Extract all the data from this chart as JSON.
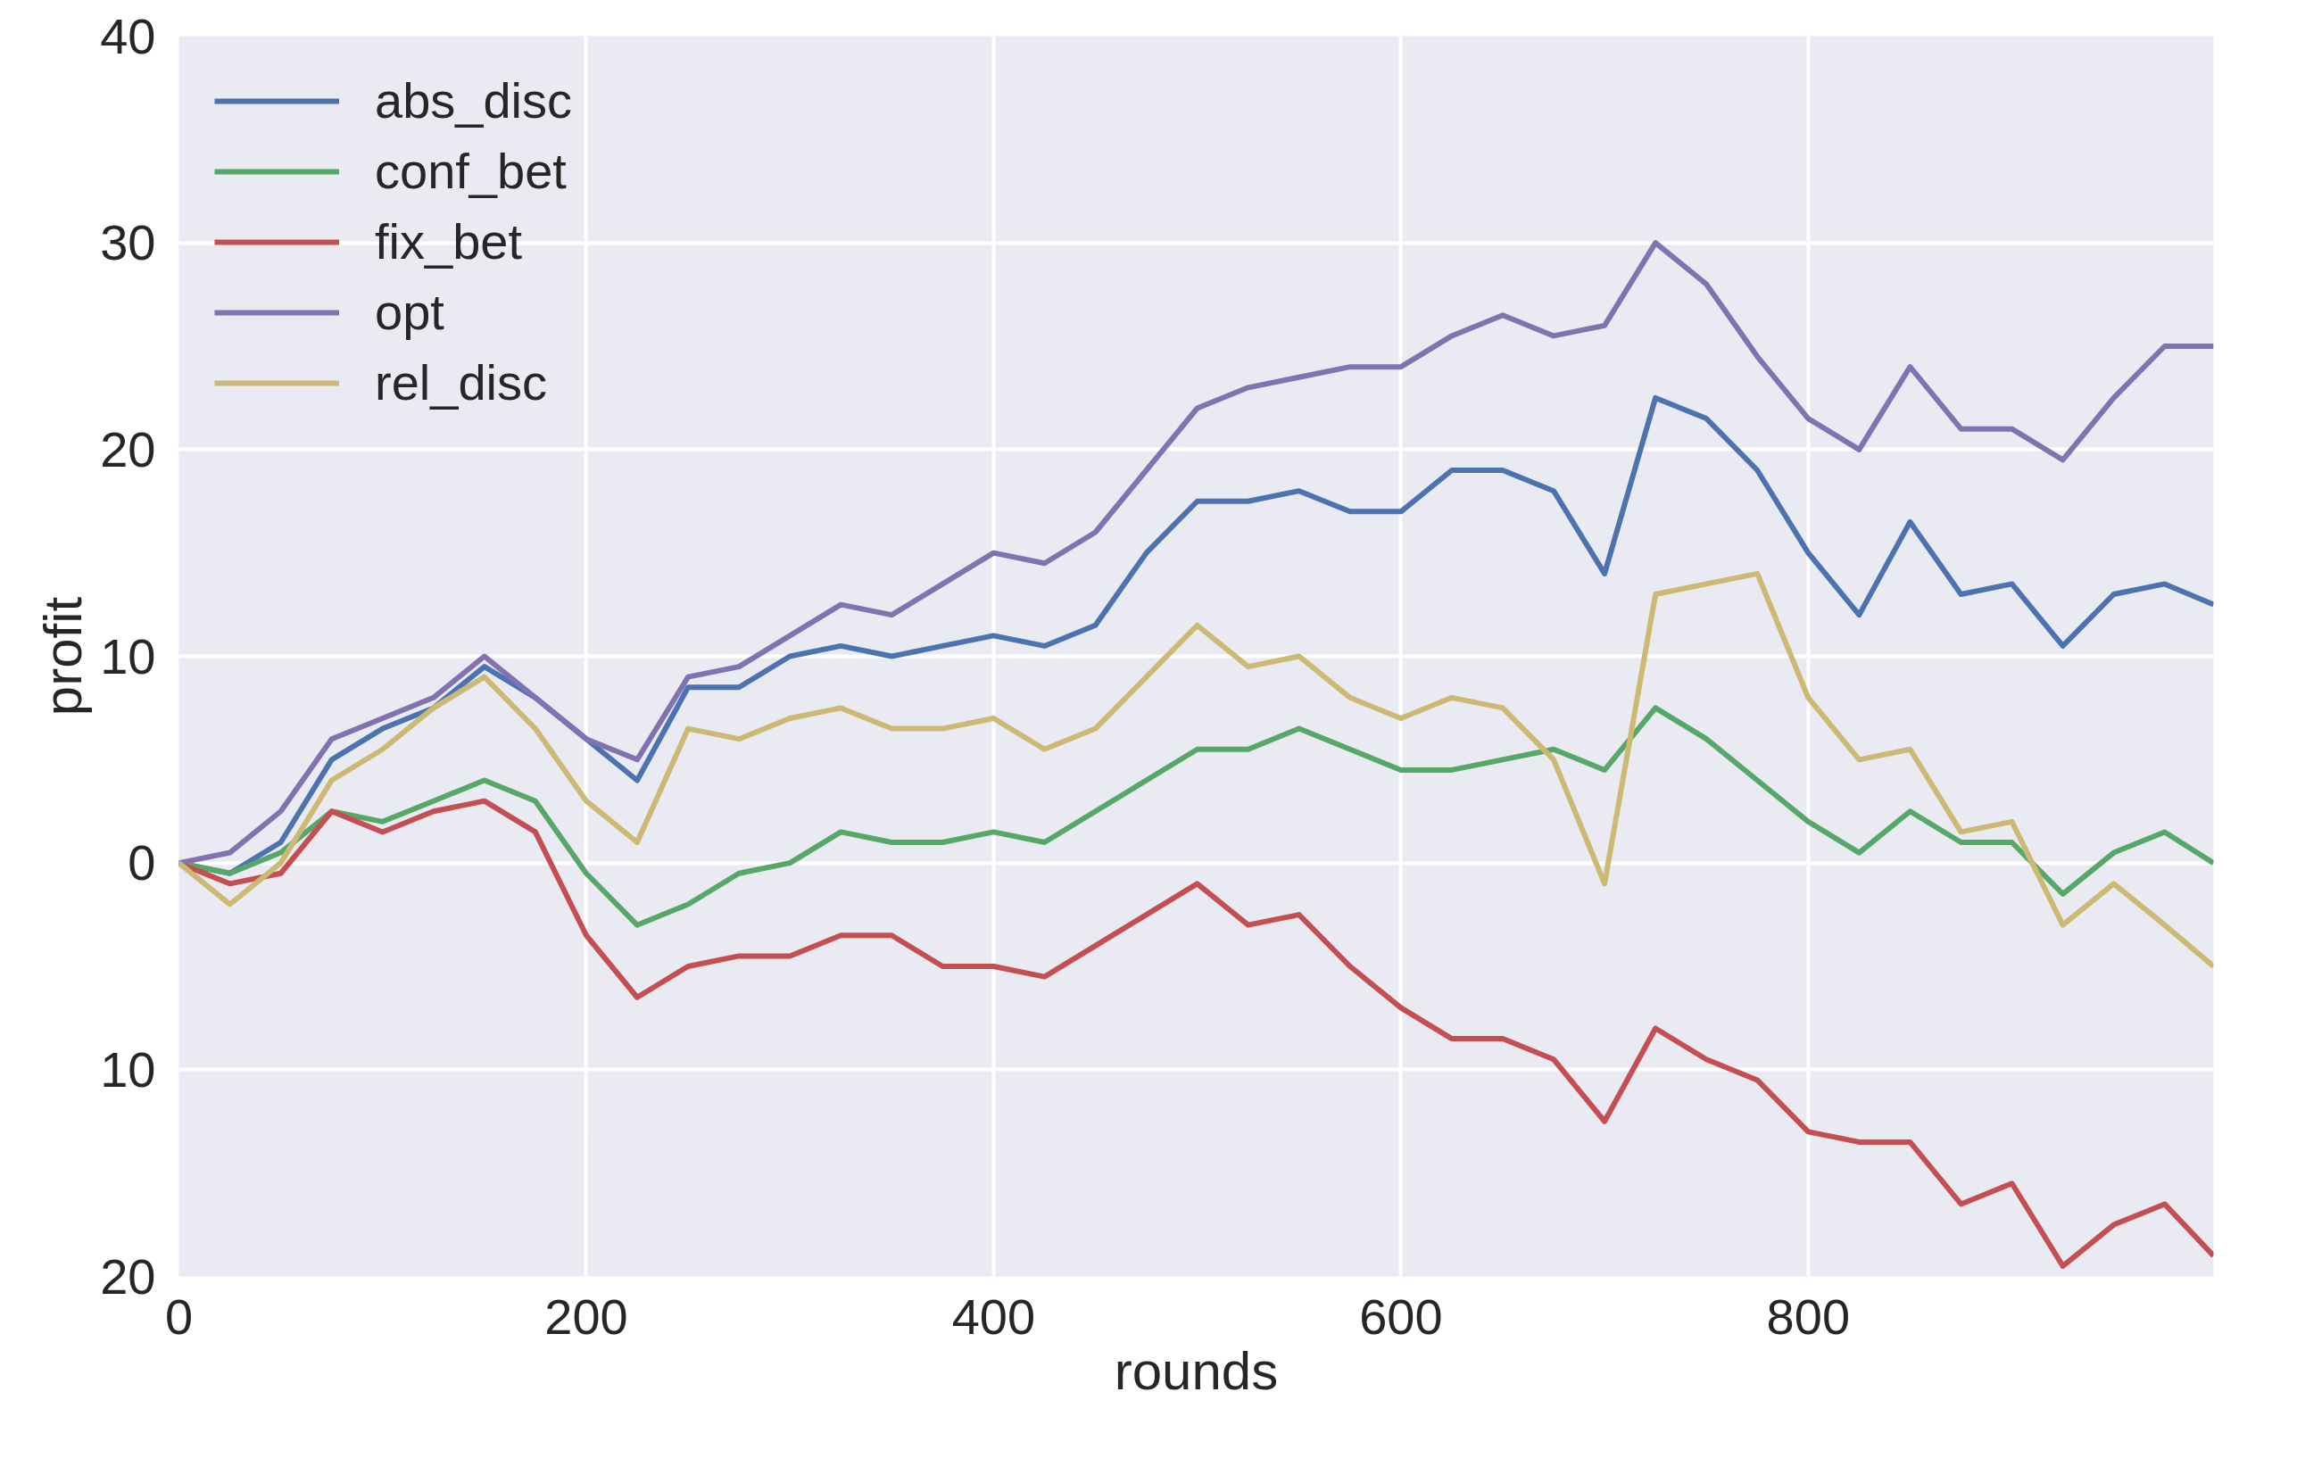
{
  "chart_data": {
    "type": "line",
    "xlabel": "rounds",
    "ylabel": "profit",
    "x": [
      0,
      25,
      50,
      75,
      100,
      125,
      150,
      175,
      200,
      225,
      250,
      275,
      300,
      325,
      350,
      375,
      400,
      425,
      450,
      475,
      500,
      525,
      550,
      575,
      600,
      625,
      650,
      675,
      700,
      725,
      750,
      775,
      800,
      825,
      850,
      875,
      900,
      925,
      950,
      975,
      999
    ],
    "series": [
      {
        "name": "abs_disc",
        "color": "#4c72b0",
        "values": [
          0,
          -0.5,
          1,
          5,
          6.5,
          7.5,
          9.5,
          8,
          6,
          4,
          8.5,
          8.5,
          10,
          10.5,
          10,
          10.5,
          11,
          10.5,
          11.5,
          15,
          17.5,
          17.5,
          18,
          17,
          17,
          19,
          19,
          18,
          14,
          22.5,
          21.5,
          19,
          15,
          12,
          16.5,
          13,
          13.5,
          10.5,
          13,
          13.5,
          12.5
        ]
      },
      {
        "name": "conf_bet",
        "color": "#55a868",
        "values": [
          0,
          -0.5,
          0.5,
          2.5,
          2,
          3,
          4,
          3,
          -0.5,
          -3,
          -2,
          -0.5,
          0,
          1.5,
          1,
          1,
          1.5,
          1,
          2.5,
          4,
          5.5,
          5.5,
          6.5,
          5.5,
          4.5,
          4.5,
          5,
          5.5,
          4.5,
          7.5,
          6,
          4,
          2,
          0.5,
          2.5,
          1,
          1,
          -1.5,
          0.5,
          1.5,
          0
        ]
      },
      {
        "name": "fix_bet",
        "color": "#c44e52",
        "values": [
          0,
          -1,
          -0.5,
          2.5,
          1.5,
          2.5,
          3,
          1.5,
          -3.5,
          -6.5,
          -5,
          -4.5,
          -4.5,
          -3.5,
          -3.5,
          -5,
          -5,
          -5.5,
          -4,
          -2.5,
          -1,
          -3,
          -2.5,
          -5,
          -7,
          -8.5,
          -8.5,
          -9.5,
          -12.5,
          -8,
          -9.5,
          -10.5,
          -13,
          -13.5,
          -13.5,
          -16.5,
          -15.5,
          -19.5,
          -17.5,
          -16.5,
          -19
        ]
      },
      {
        "name": "opt",
        "color": "#8172b2",
        "values": [
          0,
          0.5,
          2.5,
          6,
          7,
          8,
          10,
          8,
          6,
          5,
          9,
          9.5,
          11,
          12.5,
          12,
          13.5,
          15,
          14.5,
          16,
          19,
          22,
          23,
          23.5,
          24,
          24,
          25.5,
          26.5,
          25.5,
          26,
          30,
          28,
          24.5,
          21.5,
          20,
          24,
          21,
          21,
          19.5,
          22.5,
          25,
          25
        ]
      },
      {
        "name": "rel_disc",
        "color": "#ccb974",
        "values": [
          0,
          -2,
          0,
          4,
          5.5,
          7.5,
          9,
          6.5,
          3,
          1,
          6.5,
          6,
          7,
          7.5,
          6.5,
          6.5,
          7,
          5.5,
          6.5,
          9,
          11.5,
          9.5,
          10,
          8,
          7,
          8,
          7.5,
          5,
          -1,
          13,
          13.5,
          14,
          8,
          5,
          5.5,
          1.5,
          2,
          -3,
          -1,
          -3,
          -5
        ]
      }
    ],
    "xlim": [
      0,
      999
    ],
    "ylim": [
      -20,
      40
    ],
    "xticks": [
      0,
      200,
      400,
      600,
      800
    ],
    "yticks": [
      {
        "value": -20,
        "label": "20"
      },
      {
        "value": -10,
        "label": "10"
      },
      0,
      10,
      20,
      30,
      40
    ],
    "grid": true,
    "legend": "top left"
  }
}
